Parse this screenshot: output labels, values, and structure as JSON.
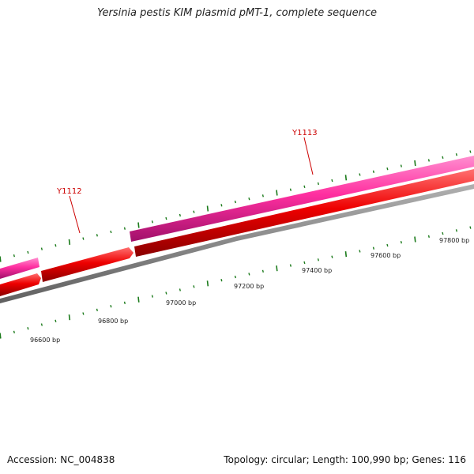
{
  "title": "Yersinia pestis KIM plasmid pMT-1, complete sequence",
  "footer": {
    "accession": "Accession: NC_004838",
    "info": "Topology: circular; Length: 100,990 bp; Genes: 116"
  },
  "gene_labels": [
    "Y1112",
    "Y1113"
  ],
  "bp_labels": [
    "96600 bp",
    "96800 bp",
    "97000 bp",
    "97200 bp",
    "97400 bp",
    "97600 bp",
    "97800 bp"
  ],
  "colors": {
    "forward_strand": "#ff2fa0",
    "reverse_strand": "#ee0000",
    "backbone": "#808080",
    "ticks": "#1a7a1a",
    "label": "#cc0000"
  }
}
